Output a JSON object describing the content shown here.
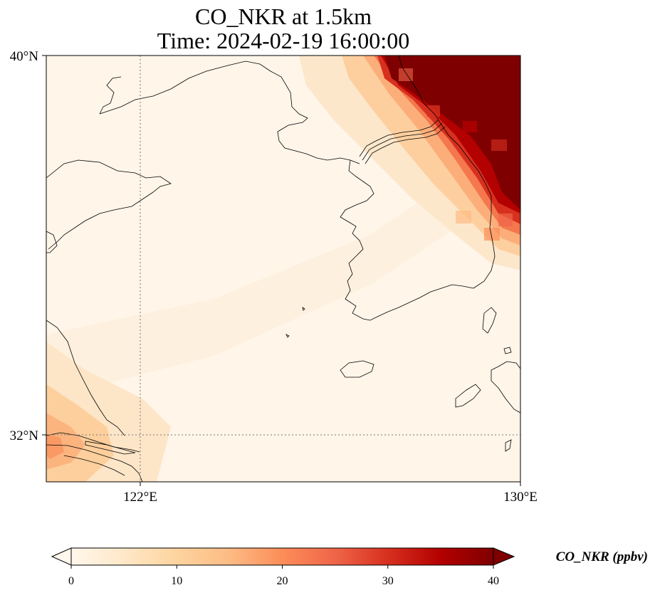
{
  "title": {
    "line1": "CO_NKR at 1.5km",
    "line2": "Time: 2024-02-19 16:00:00"
  },
  "map": {
    "extent": {
      "lon_min": 120,
      "lon_max": 130,
      "lat_min": 31,
      "lat_max": 40
    },
    "lat_ticks": [
      {
        "value": 40,
        "label": "40°N"
      },
      {
        "value": 32,
        "label": "32°N"
      }
    ],
    "lon_ticks": [
      {
        "value": 122,
        "label": "122°E"
      },
      {
        "value": 130,
        "label": "130°E"
      }
    ],
    "gridlines": "dotted at 122°E and 32°N",
    "field_description": "high CO concentrations (>40 ppbv) in the northeast corner over North Korea/Manchuria; moderate values near the Yangtze mouth in the southwest"
  },
  "colorbar": {
    "label": "CO_NKR (ppbv)",
    "min": 0,
    "max": 40,
    "ticks": [
      "0",
      "10",
      "20",
      "30",
      "40"
    ],
    "extend": "both",
    "colormap": "OrRd",
    "colors": [
      "#fff7ec",
      "#fee8c8",
      "#fdd49e",
      "#fdbb84",
      "#fc8d59",
      "#ef6548",
      "#d7301f",
      "#b30000",
      "#7f0000"
    ]
  }
}
